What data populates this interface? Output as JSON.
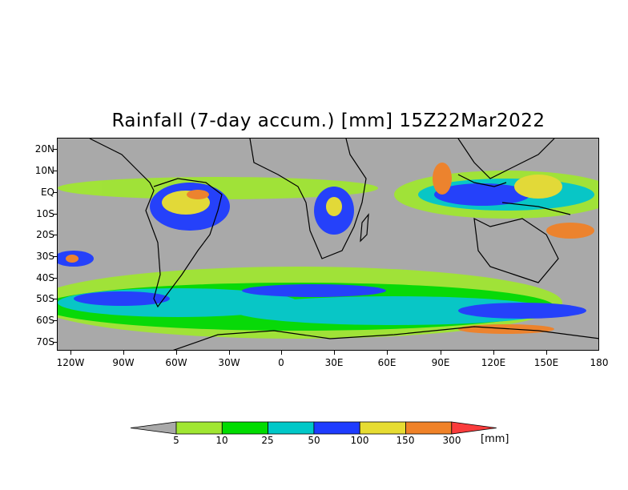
{
  "title": "Rainfall (7-day accum.) [mm] 15Z22Mar2022",
  "lat_labels": [
    "20N",
    "10N",
    "EQ",
    "10S",
    "20S",
    "30S",
    "40S",
    "50S",
    "60S",
    "70S"
  ],
  "lon_labels": [
    "120W",
    "90W",
    "60W",
    "30W",
    "0",
    "30E",
    "60E",
    "90E",
    "120E",
    "150E",
    "180"
  ],
  "colorbar": {
    "labels": [
      "5",
      "10",
      "25",
      "50",
      "100",
      "150",
      "300"
    ],
    "unit": "[mm]",
    "colors": [
      "#a9a9a9",
      "#a0e632",
      "#00dc00",
      "#00c8c8",
      "#1e3cff",
      "#e6dc32",
      "#f08228",
      "#fa3c3c"
    ]
  },
  "map_colors": {
    "background": "#a9a9a9",
    "coast": "#000000"
  }
}
